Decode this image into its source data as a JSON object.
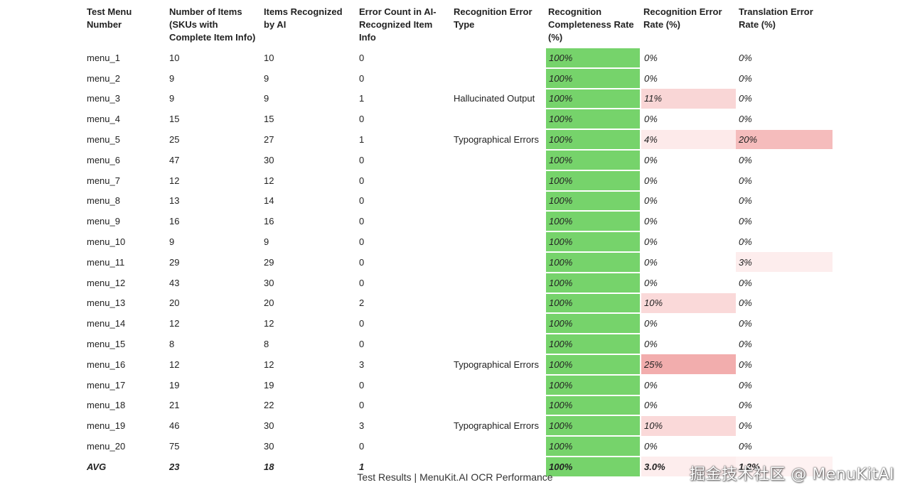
{
  "table": {
    "headers": [
      "Test Menu Number",
      "Number of Items (SKUs with Complete Item Info)",
      "Items Recognized by AI",
      "Error Count in AI-Recognized Item Info",
      "Recognition Error Type",
      "Recognition Completeness Rate (%)",
      "Recognition Error Rate (%)",
      "Translation Error Rate (%)"
    ],
    "rows": [
      {
        "menu": "menu_1",
        "items": "10",
        "recognized": "10",
        "errors": "0",
        "error_type": "",
        "completeness": "100%",
        "rec_error": "0%",
        "trans_error": "0%",
        "rec_error_level": 0,
        "trans_error_level": 0
      },
      {
        "menu": "menu_2",
        "items": "9",
        "recognized": "9",
        "errors": "0",
        "error_type": "",
        "completeness": "100%",
        "rec_error": "0%",
        "trans_error": "0%",
        "rec_error_level": 0,
        "trans_error_level": 0
      },
      {
        "menu": "menu_3",
        "items": "9",
        "recognized": "9",
        "errors": "1",
        "error_type": "Hallucinated Output",
        "completeness": "100%",
        "rec_error": "11%",
        "trans_error": "0%",
        "rec_error_level": 0.11,
        "trans_error_level": 0
      },
      {
        "menu": "menu_4",
        "items": "15",
        "recognized": "15",
        "errors": "0",
        "error_type": "",
        "completeness": "100%",
        "rec_error": "0%",
        "trans_error": "0%",
        "rec_error_level": 0,
        "trans_error_level": 0
      },
      {
        "menu": "menu_5",
        "items": "25",
        "recognized": "27",
        "errors": "1",
        "error_type": "Typographical Errors",
        "completeness": "100%",
        "rec_error": "4%",
        "trans_error": "20%",
        "rec_error_level": 0.04,
        "trans_error_level": 0.2
      },
      {
        "menu": "menu_6",
        "items": "47",
        "recognized": "30",
        "errors": "0",
        "error_type": "",
        "completeness": "100%",
        "rec_error": "0%",
        "trans_error": "0%",
        "rec_error_level": 0,
        "trans_error_level": 0
      },
      {
        "menu": "menu_7",
        "items": "12",
        "recognized": "12",
        "errors": "0",
        "error_type": "",
        "completeness": "100%",
        "rec_error": "0%",
        "trans_error": "0%",
        "rec_error_level": 0,
        "trans_error_level": 0
      },
      {
        "menu": "menu_8",
        "items": "13",
        "recognized": "14",
        "errors": "0",
        "error_type": "",
        "completeness": "100%",
        "rec_error": "0%",
        "trans_error": "0%",
        "rec_error_level": 0,
        "trans_error_level": 0
      },
      {
        "menu": "menu_9",
        "items": "16",
        "recognized": "16",
        "errors": "0",
        "error_type": "",
        "completeness": "100%",
        "rec_error": "0%",
        "trans_error": "0%",
        "rec_error_level": 0,
        "trans_error_level": 0
      },
      {
        "menu": "menu_10",
        "items": "9",
        "recognized": "9",
        "errors": "0",
        "error_type": "",
        "completeness": "100%",
        "rec_error": "0%",
        "trans_error": "0%",
        "rec_error_level": 0,
        "trans_error_level": 0
      },
      {
        "menu": "menu_11",
        "items": "29",
        "recognized": "29",
        "errors": "0",
        "error_type": "",
        "completeness": "100%",
        "rec_error": "0%",
        "trans_error": "3%",
        "rec_error_level": 0,
        "trans_error_level": 0.03
      },
      {
        "menu": "menu_12",
        "items": "43",
        "recognized": "30",
        "errors": "0",
        "error_type": "",
        "completeness": "100%",
        "rec_error": "0%",
        "trans_error": "0%",
        "rec_error_level": 0,
        "trans_error_level": 0
      },
      {
        "menu": "menu_13",
        "items": "20",
        "recognized": "20",
        "errors": "2",
        "error_type": "",
        "completeness": "100%",
        "rec_error": "10%",
        "trans_error": "0%",
        "rec_error_level": 0.1,
        "trans_error_level": 0
      },
      {
        "menu": "menu_14",
        "items": "12",
        "recognized": "12",
        "errors": "0",
        "error_type": "",
        "completeness": "100%",
        "rec_error": "0%",
        "trans_error": "0%",
        "rec_error_level": 0,
        "trans_error_level": 0
      },
      {
        "menu": "menu_15",
        "items": "8",
        "recognized": "8",
        "errors": "0",
        "error_type": "",
        "completeness": "100%",
        "rec_error": "0%",
        "trans_error": "0%",
        "rec_error_level": 0,
        "trans_error_level": 0
      },
      {
        "menu": "menu_16",
        "items": "12",
        "recognized": "12",
        "errors": "3",
        "error_type": "Typographical Errors",
        "completeness": "100%",
        "rec_error": "25%",
        "trans_error": "0%",
        "rec_error_level": 0.25,
        "trans_error_level": 0
      },
      {
        "menu": "menu_17",
        "items": "19",
        "recognized": "19",
        "errors": "0",
        "error_type": "",
        "completeness": "100%",
        "rec_error": "0%",
        "trans_error": "0%",
        "rec_error_level": 0,
        "trans_error_level": 0
      },
      {
        "menu": "menu_18",
        "items": "21",
        "recognized": "22",
        "errors": "0",
        "error_type": "",
        "completeness": "100%",
        "rec_error": "0%",
        "trans_error": "0%",
        "rec_error_level": 0,
        "trans_error_level": 0
      },
      {
        "menu": "menu_19",
        "items": "46",
        "recognized": "30",
        "errors": "3",
        "error_type": "Typographical Errors",
        "completeness": "100%",
        "rec_error": "10%",
        "trans_error": "0%",
        "rec_error_level": 0.1,
        "trans_error_level": 0
      },
      {
        "menu": "menu_20",
        "items": "75",
        "recognized": "30",
        "errors": "0",
        "error_type": "",
        "completeness": "100%",
        "rec_error": "0%",
        "trans_error": "0%",
        "rec_error_level": 0,
        "trans_error_level": 0
      }
    ],
    "avg": {
      "menu": "AVG",
      "items": "23",
      "recognized": "18",
      "errors": "1",
      "error_type": "",
      "completeness": "100%",
      "rec_error": "3.0%",
      "trans_error": "1.2%",
      "rec_error_level": 0.03,
      "trans_error_level": 0.012
    }
  },
  "colors": {
    "complete_fill": "#76d36b",
    "error_fill_max": "#f2adad",
    "error_fill_min": "#fff6f6"
  },
  "caption": "Test Results | MenuKit.AI OCR Performance",
  "watermark": "掘金技术社区 @ MenuKitAI"
}
